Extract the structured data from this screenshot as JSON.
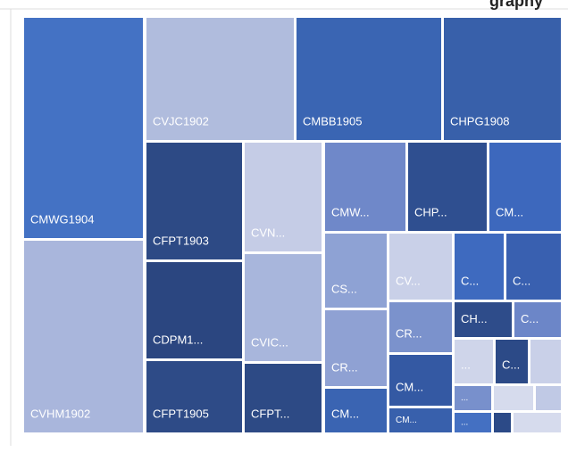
{
  "header": {
    "title": "graphy"
  },
  "tiles": [
    {
      "label": "CMWG1904",
      "color": "#4472c4"
    },
    {
      "label": "CVHM1902",
      "color": "#a9b6dc"
    },
    {
      "label": "CVJC1902",
      "color": "#b0bcdd"
    },
    {
      "label": "CMBB1905",
      "color": "#3a65b3"
    },
    {
      "label": "CHPG1908",
      "color": "#3860aa"
    },
    {
      "label": "CFPT1903",
      "color": "#2d4a85"
    },
    {
      "label": "CDPM1...",
      "color": "#2b4680"
    },
    {
      "label": "CFPT1905",
      "color": "#2e4b87"
    },
    {
      "label": "CVN...",
      "color": "#c5cce6"
    },
    {
      "label": "CVIC...",
      "color": "#a8b6dc"
    },
    {
      "label": "CFPT...",
      "color": "#2d4a85"
    },
    {
      "label": "CMW...",
      "color": "#6f88c9"
    },
    {
      "label": "CHP...",
      "color": "#2f4f90"
    },
    {
      "label": "CM...",
      "color": "#3d68bd"
    },
    {
      "label": "CS...",
      "color": "#8ea2d4"
    },
    {
      "label": "CR...",
      "color": "#8fa1d3"
    },
    {
      "label": "CM...",
      "color": "#3a64b2"
    },
    {
      "label": "CV...",
      "color": "#c9d0e8"
    },
    {
      "label": "CR...",
      "color": "#7b92cc"
    },
    {
      "label": "CM...",
      "color": "#3459a3"
    },
    {
      "label": "CM...",
      "color": "#3860ac"
    },
    {
      "label": "C...",
      "color": "#3e6abf"
    },
    {
      "label": "C...",
      "color": "#3960b0"
    },
    {
      "label": "CH...",
      "color": "#2e4c8a"
    },
    {
      "label": "C...",
      "color": "#6c86c8"
    },
    {
      "label": "...",
      "color": "#cfd5ea"
    },
    {
      "label": "C...",
      "color": "#2c4a87"
    },
    {
      "color": "#c9d0e8"
    },
    {
      "label": "...",
      "color": "#7890cc"
    },
    {
      "color": "#d6dbed"
    },
    {
      "color": "#c0c9e5"
    },
    {
      "label": "...",
      "color": "#4470c2"
    },
    {
      "color": "#2c4a87"
    },
    {
      "color": "#d6dbed"
    }
  ]
}
